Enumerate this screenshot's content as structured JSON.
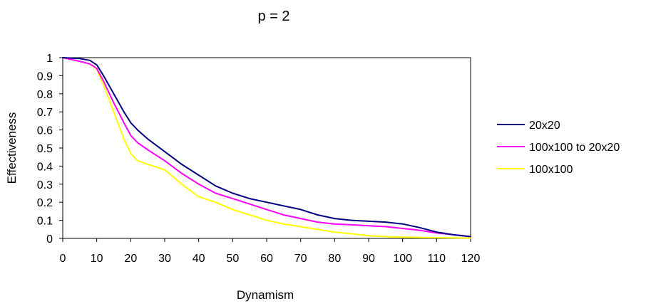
{
  "chart_data": {
    "type": "line",
    "title": "p = 2",
    "xlabel": "Dynamism",
    "ylabel": "Effectiveness",
    "xlim": [
      0,
      120
    ],
    "ylim": [
      0,
      1
    ],
    "x_ticks": [
      "0",
      "10",
      "20",
      "30",
      "40",
      "50",
      "60",
      "70",
      "80",
      "90",
      "100",
      "110",
      "120"
    ],
    "y_ticks": [
      "0",
      "0.1",
      "0.2",
      "0.3",
      "0.4",
      "0.5",
      "0.6",
      "0.7",
      "0.8",
      "0.9",
      "1"
    ],
    "grid": false,
    "legend_position": "right",
    "x": [
      0,
      5,
      8,
      10,
      12,
      15,
      18,
      20,
      22,
      25,
      30,
      35,
      40,
      45,
      50,
      55,
      60,
      65,
      70,
      75,
      80,
      85,
      90,
      95,
      100,
      105,
      110,
      115,
      120
    ],
    "series": [
      {
        "name": "20x20",
        "color": "#000080",
        "values": [
          1.0,
          0.995,
          0.985,
          0.96,
          0.9,
          0.8,
          0.7,
          0.64,
          0.6,
          0.55,
          0.48,
          0.41,
          0.35,
          0.29,
          0.25,
          0.22,
          0.2,
          0.18,
          0.16,
          0.13,
          0.11,
          0.1,
          0.095,
          0.09,
          0.08,
          0.06,
          0.035,
          0.02,
          0.01
        ]
      },
      {
        "name": "100x100 to 20x20",
        "color": "#ff00ff",
        "values": [
          1.0,
          0.98,
          0.965,
          0.94,
          0.87,
          0.75,
          0.64,
          0.57,
          0.53,
          0.49,
          0.43,
          0.36,
          0.3,
          0.25,
          0.22,
          0.19,
          0.16,
          0.13,
          0.11,
          0.09,
          0.08,
          0.075,
          0.07,
          0.065,
          0.055,
          0.045,
          0.03,
          0.02,
          0.01
        ]
      },
      {
        "name": "100x100",
        "color": "#ffff00",
        "values": [
          1.0,
          0.98,
          0.965,
          0.935,
          0.85,
          0.7,
          0.55,
          0.47,
          0.43,
          0.41,
          0.38,
          0.3,
          0.23,
          0.2,
          0.16,
          0.13,
          0.1,
          0.08,
          0.065,
          0.05,
          0.035,
          0.025,
          0.015,
          0.01,
          0.007,
          0.005,
          0.004,
          0.003,
          0.002
        ]
      }
    ]
  }
}
